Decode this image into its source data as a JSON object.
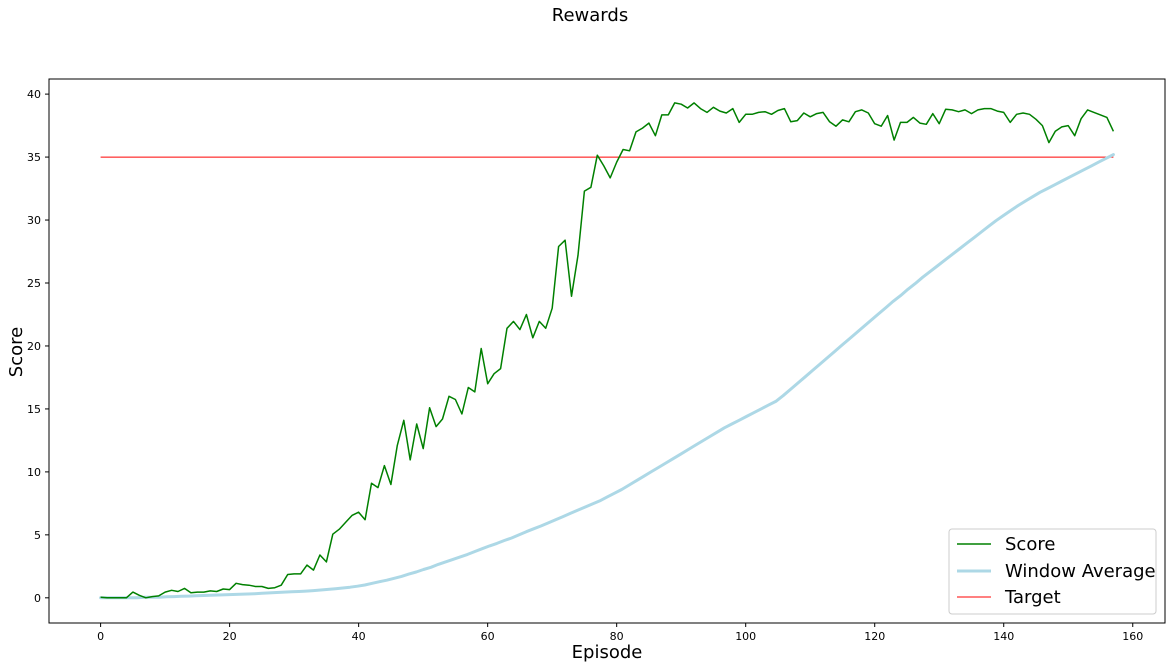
{
  "chart_data": {
    "type": "line",
    "title": "Rewards",
    "xlabel": "Episode",
    "ylabel": "Score",
    "xlim": [
      -8,
      165
    ],
    "ylim": [
      -2,
      41.2
    ],
    "xticks": [
      0,
      20,
      40,
      60,
      80,
      100,
      120,
      140,
      160
    ],
    "yticks": [
      0,
      5,
      10,
      15,
      20,
      25,
      30,
      35,
      40
    ],
    "grid": false,
    "legend_position": "bottom-right",
    "series": [
      {
        "name": "Score",
        "color": "#008000",
        "values": [
          0.05,
          0.0,
          0.0,
          0.0,
          0.0,
          0.45,
          0.2,
          0.0,
          0.1,
          0.15,
          0.45,
          0.6,
          0.5,
          0.75,
          0.4,
          0.45,
          0.45,
          0.55,
          0.5,
          0.7,
          0.65,
          1.15,
          1.05,
          1.0,
          0.9,
          0.9,
          0.75,
          0.8,
          1.0,
          1.85,
          1.9,
          1.9,
          2.6,
          2.2,
          3.4,
          2.85,
          5.05,
          5.45,
          6.0,
          6.55,
          6.8,
          6.2,
          9.1,
          8.75,
          10.5,
          9.0,
          12.1,
          14.1,
          10.95,
          13.8,
          11.85,
          15.1,
          13.6,
          14.2,
          16.0,
          15.75,
          14.6,
          16.7,
          16.35,
          19.8,
          17.0,
          17.8,
          18.2,
          21.4,
          21.95,
          21.3,
          22.5,
          20.65,
          21.95,
          21.4,
          23.0,
          27.9,
          28.4,
          23.95,
          27.2,
          32.3,
          32.6,
          35.15,
          34.3,
          33.35,
          34.6,
          35.6,
          35.5,
          37.0,
          37.3,
          37.7,
          36.7,
          38.35,
          38.35,
          39.3,
          39.2,
          38.9,
          39.3,
          38.85,
          38.55,
          38.95,
          38.65,
          38.5,
          38.85,
          37.75,
          38.4,
          38.4,
          38.55,
          38.6,
          38.4,
          38.7,
          38.85,
          37.8,
          37.9,
          38.5,
          38.2,
          38.45,
          38.55,
          37.8,
          37.45,
          37.95,
          37.8,
          38.6,
          38.75,
          38.5,
          37.65,
          37.45,
          38.3,
          36.35,
          37.75,
          37.75,
          38.15,
          37.7,
          37.6,
          38.45,
          37.65,
          38.8,
          38.75,
          38.6,
          38.75,
          38.45,
          38.75,
          38.85,
          38.85,
          38.65,
          38.55,
          37.75,
          38.4,
          38.5,
          38.4,
          38.0,
          37.5,
          36.15,
          37.05,
          37.4,
          37.5,
          36.7,
          38.05,
          38.75,
          38.55,
          38.35,
          38.15,
          37.05
        ]
      },
      {
        "name": "Window Average",
        "color": "#add8e6",
        "values": [
          0.0,
          0.0,
          0.0,
          0.0,
          0.0,
          0.0,
          0.05,
          0.05,
          0.05,
          0.08,
          0.1,
          0.12,
          0.14,
          0.16,
          0.18,
          0.2,
          0.22,
          0.24,
          0.26,
          0.28,
          0.3,
          0.33,
          0.36,
          0.39,
          0.42,
          0.45,
          0.48,
          0.5,
          0.53,
          0.57,
          0.62,
          0.67,
          0.72,
          0.78,
          0.84,
          0.92,
          1.02,
          1.15,
          1.28,
          1.4,
          1.55,
          1.7,
          1.88,
          2.05,
          2.25,
          2.42,
          2.65,
          2.85,
          3.05,
          3.25,
          3.45,
          3.68,
          3.9,
          4.12,
          4.32,
          4.55,
          4.75,
          5.0,
          5.25,
          5.48,
          5.7,
          5.95,
          6.2,
          6.45,
          6.7,
          6.95,
          7.2,
          7.45,
          7.7,
          8.0,
          8.3,
          8.6,
          8.95,
          9.3,
          9.65,
          10.0,
          10.35,
          10.7,
          11.05,
          11.4,
          11.75,
          12.1,
          12.45,
          12.8,
          13.15,
          13.5,
          13.8,
          14.1,
          14.4,
          14.7,
          15.0,
          15.3,
          15.6,
          16.05,
          16.55,
          17.05,
          17.55,
          18.05,
          18.55,
          19.05,
          19.55,
          20.05,
          20.55,
          21.05,
          21.55,
          22.05,
          22.55,
          23.05,
          23.55,
          24.0,
          24.5,
          24.95,
          25.45,
          25.9,
          26.35,
          26.8,
          27.25,
          27.7,
          28.15,
          28.6,
          29.05,
          29.5,
          29.95,
          30.35,
          30.75,
          31.15,
          31.5,
          31.85,
          32.2,
          32.5,
          32.8,
          33.1,
          33.4,
          33.7,
          34.0,
          34.3,
          34.6,
          34.9,
          35.2
        ]
      },
      {
        "name": "Target",
        "color": "#ff0000",
        "values": [
          35.0,
          35.0
        ]
      }
    ]
  }
}
